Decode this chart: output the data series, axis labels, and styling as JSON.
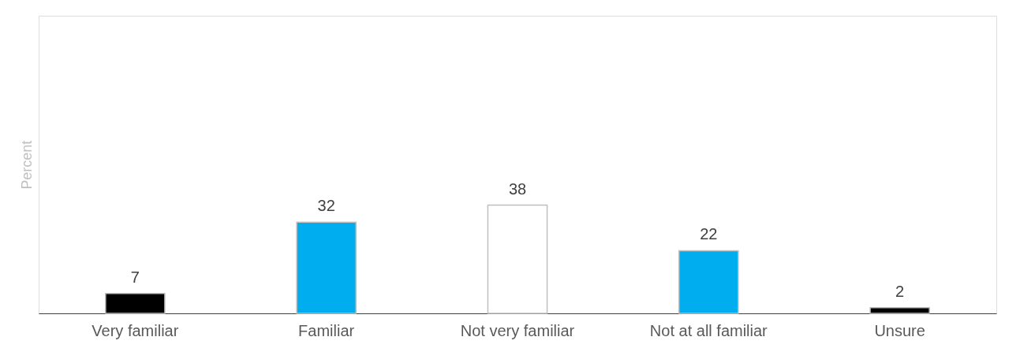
{
  "chart_data": {
    "type": "bar",
    "ylabel": "Percent",
    "categories": [
      "Very familiar",
      "Familiar",
      "Not very familiar",
      "Not at all familiar",
      "Unsure"
    ],
    "values": [
      7,
      32,
      38,
      22,
      2
    ],
    "colors": [
      "#000000",
      "#00aeef",
      "#ffffff",
      "#00aeef",
      "#000000"
    ],
    "data_labels": true,
    "grid": false,
    "legend": false
  }
}
